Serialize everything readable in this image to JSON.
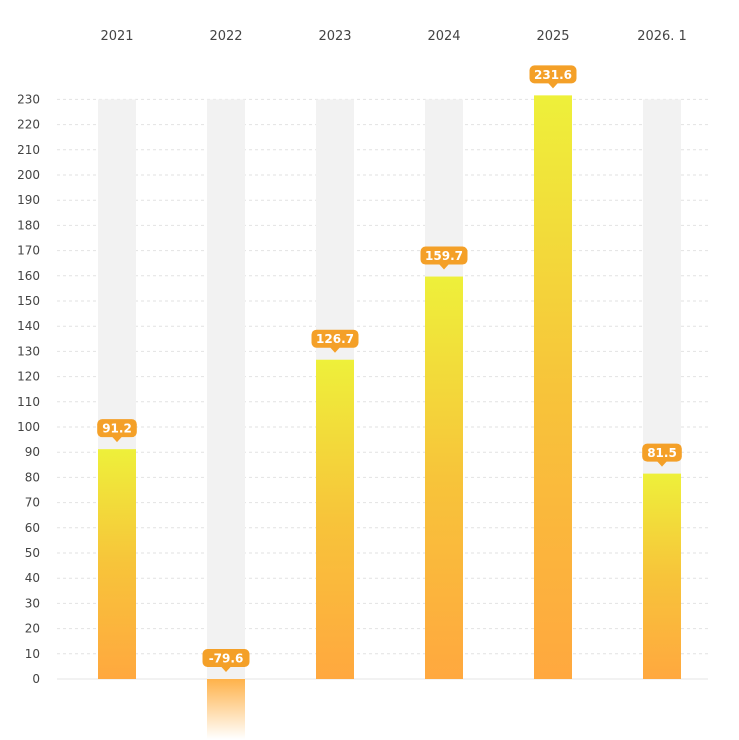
{
  "chart_data": {
    "type": "bar",
    "categories": [
      "2021",
      "2022",
      "2023",
      "2024",
      "2025",
      "2026. 1"
    ],
    "values": [
      91.2,
      -79.6,
      126.7,
      159.7,
      231.6,
      81.5
    ],
    "value_labels": [
      "91.2",
      "-79.6",
      "126.7",
      "159.7",
      "231.6",
      "81.5"
    ],
    "y_ticks": [
      "0",
      "10",
      "20",
      "30",
      "40",
      "50",
      "60",
      "70",
      "80",
      "90",
      "100",
      "110",
      "120",
      "130",
      "140",
      "150",
      "160",
      "170",
      "180",
      "190",
      "200",
      "210",
      "220",
      "230"
    ],
    "ylim": [
      0,
      230
    ],
    "grid": true,
    "x_axis_position": "top",
    "background_track_max": 230,
    "title": "",
    "xlabel": "",
    "ylabel": "",
    "colors": {
      "bar_top": "#EEF03A",
      "bar_mid": "#F7C43A",
      "bar_bottom": "#FFA83F",
      "negative_top": "#FFB24A",
      "negative_bottom": "#FFFFFF",
      "label_bg": "#F4A028",
      "track": "#F2F2F2",
      "grid": "#E2E2E2",
      "text": "#444444"
    }
  }
}
